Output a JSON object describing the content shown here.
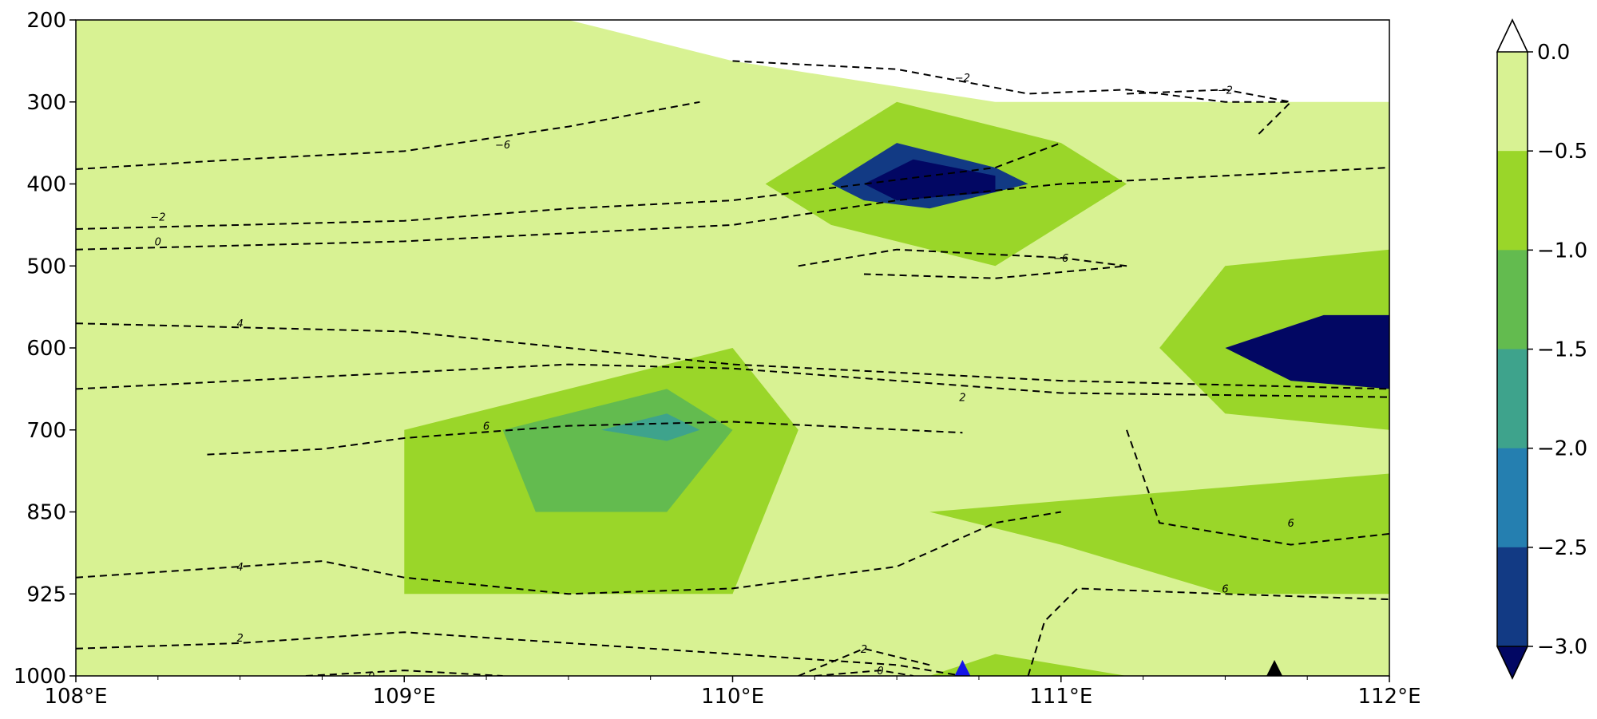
{
  "chart_data": {
    "type": "heatmap",
    "title": "",
    "xlabel": "",
    "ylabel": "",
    "x_ticks": [
      "108°E",
      "109°E",
      "110°E",
      "111°E",
      "112°E"
    ],
    "x_tick_values": [
      108,
      109,
      110,
      111,
      112
    ],
    "xlim": [
      108,
      112
    ],
    "y_ticks": [
      "200",
      "300",
      "400",
      "500",
      "600",
      "700",
      "850",
      "925",
      "1000"
    ],
    "y_levels": [
      200,
      300,
      400,
      500,
      600,
      700,
      850,
      925,
      1000
    ],
    "y_axis_inverted": true,
    "colorbar": {
      "tick_labels": [
        "0.0",
        "−0.5",
        "−1.0",
        "−1.5",
        "−2.0",
        "−2.5",
        "−3.0"
      ],
      "levels": [
        0.0,
        -0.5,
        -1.0,
        -1.5,
        -2.0,
        -2.5,
        -3.0
      ],
      "colors": [
        "#d8f293",
        "#9ad629",
        "#63bb4f",
        "#3ea38c",
        "#257fb0",
        "#123a84",
        "#020763"
      ],
      "extend": "both"
    },
    "filled_regions": [
      {
        "level": -0.5,
        "color": "#d8f293",
        "points": [
          [
            108,
            200
          ],
          [
            109.5,
            200
          ],
          [
            110,
            250
          ],
          [
            110.8,
            300
          ],
          [
            112,
            300
          ],
          [
            112,
            1000
          ],
          [
            108,
            1000
          ]
        ]
      },
      {
        "level": -1.0,
        "color": "#9ad629",
        "points": [
          [
            109,
            700
          ],
          [
            110,
            600
          ],
          [
            110.2,
            700
          ],
          [
            110,
            925
          ],
          [
            109,
            925
          ]
        ]
      },
      {
        "level": -1.5,
        "color": "#63bb4f",
        "points": [
          [
            109.3,
            700
          ],
          [
            109.8,
            650
          ],
          [
            110,
            700
          ],
          [
            109.8,
            850
          ],
          [
            109.4,
            850
          ]
        ]
      },
      {
        "level": -2.0,
        "color": "#3ea38c",
        "points": [
          [
            109.6,
            700
          ],
          [
            109.8,
            680
          ],
          [
            109.9,
            700
          ],
          [
            109.8,
            720
          ]
        ]
      },
      {
        "level": -1.0,
        "color": "#9ad629",
        "points": [
          [
            110.1,
            400
          ],
          [
            110.5,
            300
          ],
          [
            111,
            350
          ],
          [
            111.2,
            400
          ],
          [
            110.8,
            500
          ],
          [
            110.3,
            450
          ]
        ]
      },
      {
        "level": -2.5,
        "color": "#123a84",
        "points": [
          [
            110.3,
            400
          ],
          [
            110.5,
            350
          ],
          [
            110.8,
            380
          ],
          [
            110.9,
            400
          ],
          [
            110.6,
            430
          ],
          [
            110.4,
            420
          ]
        ]
      },
      {
        "level": -3.0,
        "color": "#020763",
        "points": [
          [
            110.4,
            400
          ],
          [
            110.55,
            370
          ],
          [
            110.8,
            390
          ],
          [
            110.8,
            410
          ],
          [
            110.5,
            420
          ]
        ]
      },
      {
        "level": -1.0,
        "color": "#9ad629",
        "points": [
          [
            111.3,
            600
          ],
          [
            111.5,
            500
          ],
          [
            112,
            480
          ],
          [
            112,
            700
          ],
          [
            111.5,
            680
          ]
        ]
      },
      {
        "level": -3.0,
        "color": "#020763",
        "points": [
          [
            111.5,
            600
          ],
          [
            111.8,
            560
          ],
          [
            112,
            560
          ],
          [
            112,
            650
          ],
          [
            111.7,
            640
          ]
        ]
      },
      {
        "level": -1.0,
        "color": "#9ad629",
        "points": [
          [
            110.6,
            850
          ],
          [
            111.2,
            820
          ],
          [
            112,
            780
          ],
          [
            112,
            925
          ],
          [
            111.5,
            925
          ],
          [
            111,
            880
          ]
        ]
      },
      {
        "level": -1.0,
        "color": "#9ad629",
        "points": [
          [
            110.6,
            1000
          ],
          [
            110.8,
            980
          ],
          [
            111.2,
            1000
          ]
        ]
      }
    ],
    "contours": [
      {
        "value": -6,
        "label": "−6",
        "label_at": [
          109.3,
          352
        ],
        "points": [
          [
            108,
            382
          ],
          [
            108.5,
            370
          ],
          [
            109,
            360
          ],
          [
            109.5,
            330
          ],
          [
            109.9,
            300
          ]
        ]
      },
      {
        "value": -2,
        "label": "−2",
        "label_at": [
          108.25,
          440
        ],
        "points": [
          [
            108,
            455
          ],
          [
            108.5,
            450
          ],
          [
            109,
            445
          ],
          [
            109.5,
            430
          ],
          [
            110,
            420
          ],
          [
            110.8,
            380
          ],
          [
            111,
            350
          ]
        ]
      },
      {
        "value": 0,
        "label": "0",
        "label_at": [
          108.25,
          470
        ],
        "points": [
          [
            108,
            480
          ],
          [
            108.5,
            475
          ],
          [
            109,
            470
          ],
          [
            109.5,
            460
          ],
          [
            110,
            450
          ],
          [
            110.5,
            420
          ],
          [
            111,
            400
          ],
          [
            112,
            380
          ]
        ]
      },
      {
        "value": 4,
        "label": "4",
        "label_at": [
          108.5,
          570
        ],
        "points": [
          [
            108,
            570
          ],
          [
            108.5,
            575
          ],
          [
            109,
            580
          ],
          [
            109.5,
            600
          ],
          [
            110,
            620
          ],
          [
            111,
            640
          ],
          [
            112,
            650
          ]
        ]
      },
      {
        "value": 6,
        "label": "6",
        "label_at": [
          109.25,
          695
        ],
        "points": [
          [
            108.4,
            745
          ],
          [
            108.75,
            735
          ],
          [
            109,
            715
          ],
          [
            109.5,
            695
          ],
          [
            110,
            690
          ],
          [
            110.7,
            705
          ]
        ]
      },
      {
        "value": 2,
        "label": "2",
        "label_at": [
          110.7,
          660
        ],
        "points": [
          [
            108,
            650
          ],
          [
            108.5,
            640
          ],
          [
            109,
            630
          ],
          [
            109.5,
            620
          ],
          [
            110,
            625
          ],
          [
            110.5,
            640
          ],
          [
            111,
            655
          ],
          [
            112,
            660
          ]
        ]
      },
      {
        "value": -6,
        "label": "−6",
        "label_at": [
          111,
          490
        ],
        "points": [
          [
            110.2,
            500
          ],
          [
            110.5,
            480
          ],
          [
            111,
            490
          ],
          [
            111.2,
            500
          ],
          [
            110.8,
            515
          ],
          [
            110.4,
            510
          ]
        ]
      },
      {
        "value": -2,
        "label": "−2",
        "label_at": [
          110.7,
          270
        ],
        "points": [
          [
            110,
            250
          ],
          [
            110.5,
            260
          ],
          [
            110.9,
            290
          ],
          [
            111.2,
            285
          ],
          [
            111.5,
            300
          ],
          [
            111.7,
            300
          ]
        ]
      },
      {
        "value": -2,
        "label": "−2",
        "label_at": [
          111.5,
          285
        ],
        "points": [
          [
            111.2,
            290
          ],
          [
            111.5,
            285
          ],
          [
            111.7,
            300
          ],
          [
            111.6,
            340
          ]
        ]
      },
      {
        "value": 4,
        "label": "4",
        "label_at": [
          108.5,
          900
        ],
        "points": [
          [
            108,
            910
          ],
          [
            108.5,
            900
          ],
          [
            108.75,
            895
          ],
          [
            109,
            910
          ],
          [
            109.5,
            925
          ],
          [
            110,
            920
          ],
          [
            110.5,
            900
          ],
          [
            110.8,
            860
          ],
          [
            111,
            850
          ]
        ]
      },
      {
        "value": 2,
        "label": "2",
        "label_at": [
          108.5,
          965
        ],
        "points": [
          [
            108,
            975
          ],
          [
            108.5,
            970
          ],
          [
            109,
            960
          ],
          [
            109.5,
            970
          ],
          [
            110,
            980
          ],
          [
            110.5,
            990
          ],
          [
            110.7,
            1000
          ]
        ]
      },
      {
        "value": 0,
        "label": "0",
        "label_at": [
          108.9,
          1000
        ],
        "points": [
          [
            108.7,
            1000
          ],
          [
            109,
            995
          ],
          [
            109.3,
            1000
          ]
        ]
      },
      {
        "value": 2,
        "label": "2",
        "label_at": [
          110.4,
          975
        ],
        "points": [
          [
            110.2,
            1000
          ],
          [
            110.4,
            975
          ],
          [
            110.6,
            990
          ]
        ]
      },
      {
        "value": 0,
        "label": "0",
        "label_at": [
          110.45,
          995
        ],
        "points": [
          [
            110.25,
            1000
          ],
          [
            110.45,
            995
          ],
          [
            110.55,
            1000
          ]
        ]
      },
      {
        "value": 6,
        "label": "6",
        "label_at": [
          111.5,
          920
        ],
        "points": [
          [
            110.9,
            1000
          ],
          [
            110.95,
            950
          ],
          [
            111.05,
            920
          ],
          [
            111.5,
            925
          ],
          [
            112,
            930
          ]
        ]
      },
      {
        "value": 6,
        "label": "6",
        "label_at": [
          111.7,
          860
        ],
        "points": [
          [
            111.2,
            700
          ],
          [
            111.3,
            860
          ],
          [
            111.7,
            880
          ],
          [
            112,
            870
          ]
        ]
      }
    ],
    "markers": [
      {
        "x": 110.7,
        "y": 1000,
        "shape": "triangle",
        "color": "#1414e6"
      },
      {
        "x": 111.65,
        "y": 1000,
        "shape": "triangle",
        "color": "#000000"
      }
    ]
  }
}
